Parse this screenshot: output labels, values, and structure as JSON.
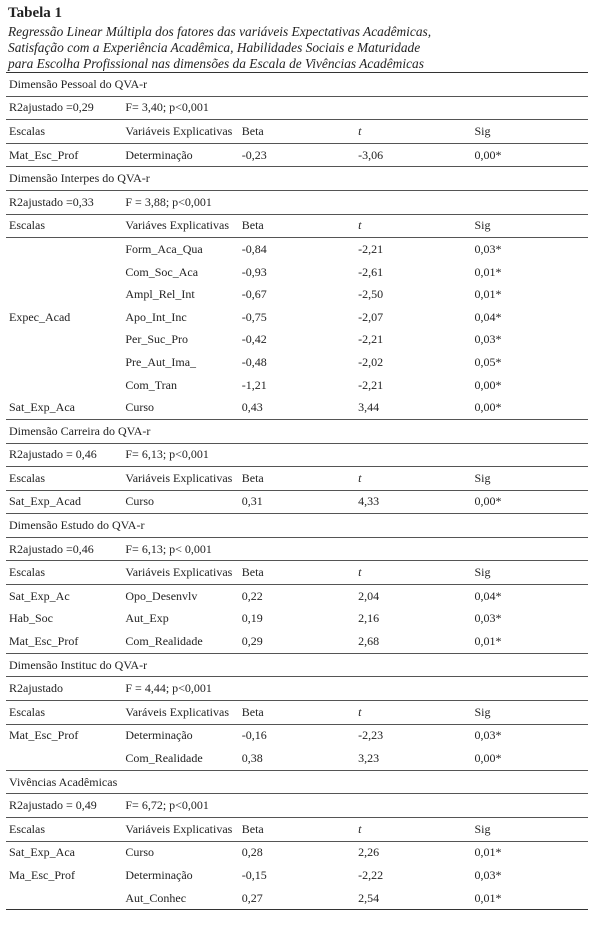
{
  "title": "Tabela 1",
  "subtitle": [
    "Regressão Linear Múltipla  dos fatores das variáveis Expectativas Acadêmicas,",
    " Satisfação  com a Experiência Acadêmica, Habilidades Sociais e Maturidade",
    "para Escolha Profissional nas dimensões da Escala de Vivências Acadêmicas"
  ],
  "sections": [
    {
      "name": "Dimensão Pessoal do QVA-r",
      "r2": "R2ajustado =0,29",
      "f": "F= 3,40; p<0,001",
      "headers": [
        "Escalas",
        "Variáveis Explicativas",
        "Beta",
        "t",
        "Sig"
      ],
      "rows": [
        [
          "Mat_Esc_Prof",
          "Determinação",
          "-0,23",
          "-3,06",
          "0,00*"
        ]
      ]
    },
    {
      "name": "Dimensão Interpes do QVA-r",
      "r2": "R2ajustado =0,33",
      "f": "F = 3,88; p<0,001",
      "headers": [
        "Escalas",
        "Variáves Explicativas",
        "Beta",
        "t",
        "Sig"
      ],
      "group_label": "Expec_Acad",
      "rows": [
        [
          "",
          "Form_Aca_Qua",
          "-0,84",
          "-2,21",
          "0,03*"
        ],
        [
          "",
          "Com_Soc_Aca",
          "-0,93",
          "-2,61",
          "0,01*"
        ],
        [
          "",
          "Ampl_Rel_Int",
          "-0,67",
          "-2,50",
          "0,01*"
        ],
        [
          "",
          "Apo_Int_Inc",
          "-0,75",
          "-2,07",
          "0,04*"
        ],
        [
          "",
          "Per_Suc_Pro",
          "-0,42",
          "-2,21",
          "0,03*"
        ],
        [
          "",
          "Pre_Aut_Ima_",
          "-0,48",
          "-2,02",
          "0,05*"
        ],
        [
          "",
          "Com_Tran",
          "-1,21",
          "-2,21",
          "0,00*"
        ],
        [
          "Sat_Exp_Aca",
          "Curso",
          "0,43",
          "3,44",
          "0,00*"
        ]
      ]
    },
    {
      "name": "Dimensão Carreira do QVA-r",
      "r2": "R2ajustado = 0,46",
      "f": "F= 6,13; p<0,001",
      "headers": [
        "Escalas",
        "Variáveis Explicativas",
        "Beta",
        "t",
        "Sig"
      ],
      "rows": [
        [
          "Sat_Exp_Acad",
          "Curso",
          "0,31",
          "4,33",
          "0,00*"
        ]
      ]
    },
    {
      "name": "Dimensão Estudo do QVA-r",
      "r2": "R2ajustado =0,46",
      "f": "F= 6,13; p< 0,001",
      "headers": [
        "Escalas",
        "Variáveis Explicativas",
        "Beta",
        "t",
        "Sig"
      ],
      "rows": [
        [
          "Sat_Exp_Ac",
          "Opo_Desenvlv",
          "0,22",
          "2,04",
          "0,04*"
        ],
        [
          "Hab_Soc",
          "Aut_Exp",
          "0,19",
          "2,16",
          "0,03*"
        ],
        [
          "Mat_Esc_Prof",
          "Com_Realidade",
          "0,29",
          "2,68",
          "0,01*"
        ]
      ]
    },
    {
      "name": "Dimensão Instituc do QVA-r",
      "r2": "R2ajustado",
      "f": "F = 4,44; p<0,001",
      "headers": [
        "Escalas",
        "Varáveis Explicativas",
        "Beta",
        "t",
        "Sig"
      ],
      "rows": [
        [
          "Mat_Esc_Prof",
          "Determinação",
          "-0,16",
          "-2,23",
          "0,03*"
        ],
        [
          "",
          "Com_Realidade",
          "0,38",
          "3,23",
          "0,00*"
        ]
      ]
    },
    {
      "name": "Vivências Acadêmicas",
      "r2": "R2ajustado = 0,49",
      "f": "F= 6,72; p<0,001",
      "headers": [
        "Escalas",
        "Variáveis Explicativas",
        "Beta",
        "t",
        "Sig"
      ],
      "rows": [
        [
          "Sat_Exp_Aca",
          "Curso",
          "0,28",
          "2,26",
          "0,01*"
        ],
        [
          "Ma_Esc_Prof",
          "Determinação",
          "-0,15",
          "-2,22",
          "0,03*"
        ],
        [
          "",
          "Aut_Conhec",
          "0,27",
          "2,54",
          "0,01*"
        ]
      ]
    }
  ]
}
